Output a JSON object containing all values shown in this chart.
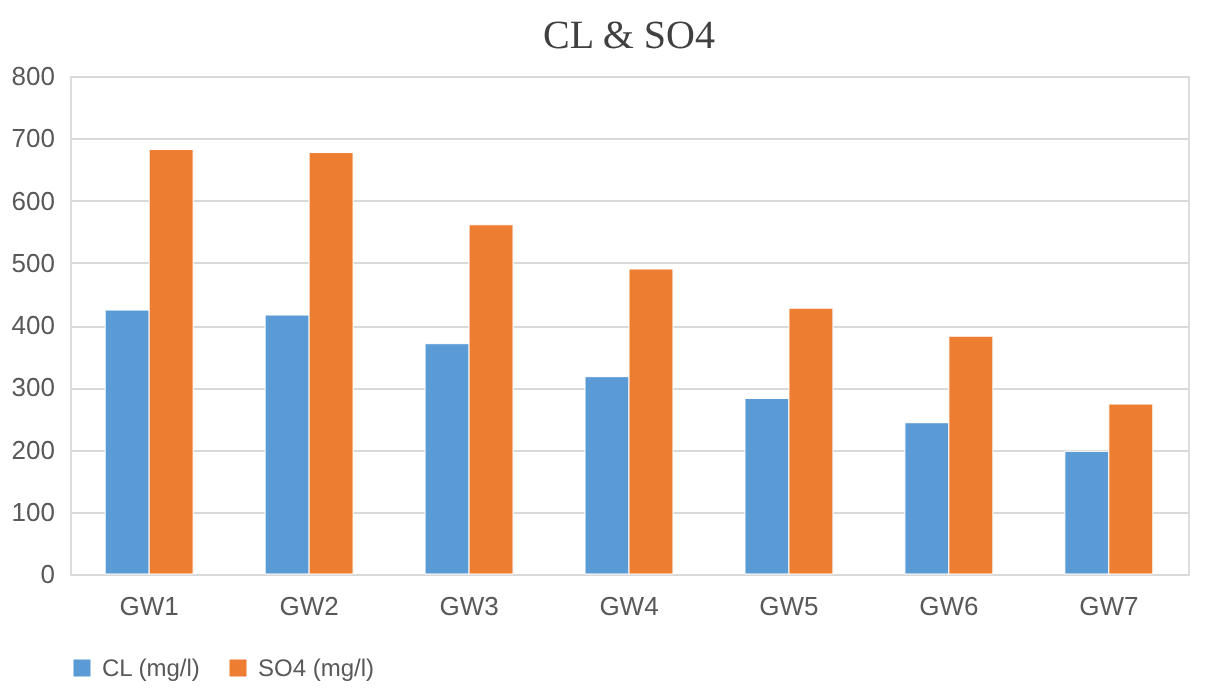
{
  "chart_data": {
    "type": "bar",
    "title": "CL & SO4",
    "categories": [
      "GW1",
      "GW2",
      "GW3",
      "GW4",
      "GW5",
      "GW6",
      "GW7"
    ],
    "series": [
      {
        "name": "CL (mg/l)",
        "color": "#5b9bd5",
        "values": [
          424,
          416,
          370,
          317,
          282,
          243,
          197
        ]
      },
      {
        "name": "SO4 (mg/l)",
        "color": "#ed7d31",
        "values": [
          682,
          677,
          561,
          490,
          427,
          382,
          273
        ]
      }
    ],
    "ylim": [
      0,
      800
    ],
    "yticks": [
      0,
      100,
      200,
      300,
      400,
      500,
      600,
      700,
      800
    ],
    "grid": "y",
    "legend": "bottom"
  }
}
